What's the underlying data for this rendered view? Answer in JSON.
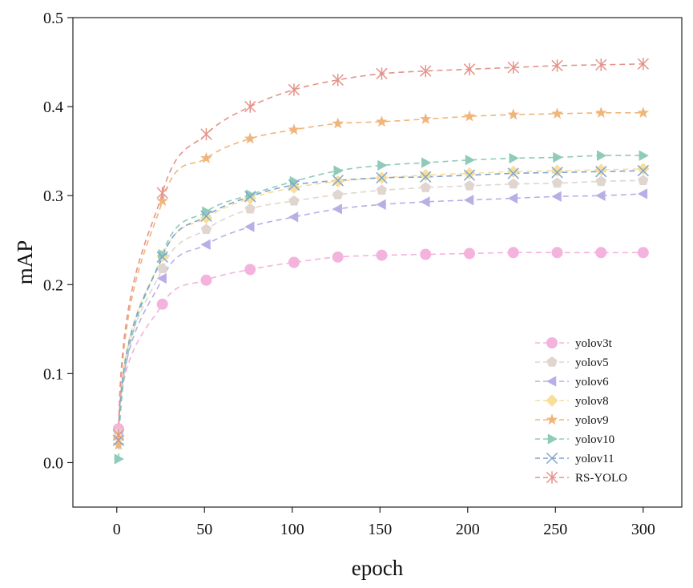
{
  "chart_data": {
    "type": "line",
    "xlabel": "epoch",
    "ylabel": "mAP",
    "xlim": [
      -25,
      322
    ],
    "ylim": [
      -0.05,
      0.5
    ],
    "xticks": [
      0,
      50,
      100,
      150,
      200,
      250,
      300
    ],
    "yticks": [
      0.0,
      0.1,
      0.2,
      0.3,
      0.4,
      0.5
    ],
    "xtick_labels": [
      "0",
      "50",
      "100",
      "150",
      "200",
      "250",
      "300"
    ],
    "ytick_labels": [
      "0.0",
      "0.1",
      "0.2",
      "0.3",
      "0.4",
      "0.5"
    ],
    "grid": false,
    "legend_position": "bottom-right",
    "marker_x": [
      1,
      26,
      51,
      76,
      101,
      126,
      151,
      176,
      201,
      226,
      251,
      276,
      300
    ],
    "series": [
      {
        "name": "yolov3t",
        "color": "#f4b3dc",
        "marker": "circle",
        "values": [
          0.038,
          0.178,
          0.205,
          0.217,
          0.225,
          0.231,
          0.233,
          0.234,
          0.235,
          0.236,
          0.236,
          0.236,
          0.236
        ]
      },
      {
        "name": "yolov5",
        "color": "#e0d6cf",
        "marker": "pentagon",
        "values": [
          0.033,
          0.218,
          0.262,
          0.285,
          0.294,
          0.301,
          0.306,
          0.309,
          0.311,
          0.313,
          0.314,
          0.316,
          0.317
        ]
      },
      {
        "name": "yolov6",
        "color": "#b9aee6",
        "marker": "triangle-left",
        "values": [
          0.03,
          0.207,
          0.245,
          0.265,
          0.276,
          0.285,
          0.29,
          0.293,
          0.295,
          0.297,
          0.299,
          0.3,
          0.302
        ]
      },
      {
        "name": "yolov8",
        "color": "#f7df9a",
        "marker": "diamond",
        "values": [
          0.028,
          0.232,
          0.275,
          0.297,
          0.309,
          0.316,
          0.32,
          0.323,
          0.325,
          0.327,
          0.328,
          0.329,
          0.33
        ]
      },
      {
        "name": "yolov9",
        "color": "#f0b57a",
        "marker": "star",
        "values": [
          0.02,
          0.294,
          0.342,
          0.364,
          0.374,
          0.381,
          0.383,
          0.386,
          0.389,
          0.391,
          0.392,
          0.393,
          0.393
        ]
      },
      {
        "name": "yolov10",
        "color": "#8fcbb8",
        "marker": "triangle-right",
        "values": [
          0.004,
          0.234,
          0.282,
          0.301,
          0.316,
          0.328,
          0.334,
          0.337,
          0.34,
          0.342,
          0.343,
          0.345,
          0.345
        ]
      },
      {
        "name": "yolov11",
        "color": "#7fa4cf",
        "marker": "x",
        "values": [
          0.025,
          0.231,
          0.277,
          0.299,
          0.312,
          0.317,
          0.32,
          0.321,
          0.323,
          0.325,
          0.326,
          0.327,
          0.328
        ]
      },
      {
        "name": "RS-YOLO",
        "color": "#e3938a",
        "marker": "asterisk",
        "values": [
          0.031,
          0.303,
          0.369,
          0.4,
          0.419,
          0.43,
          0.437,
          0.44,
          0.442,
          0.444,
          0.446,
          0.447,
          0.448
        ]
      }
    ]
  }
}
